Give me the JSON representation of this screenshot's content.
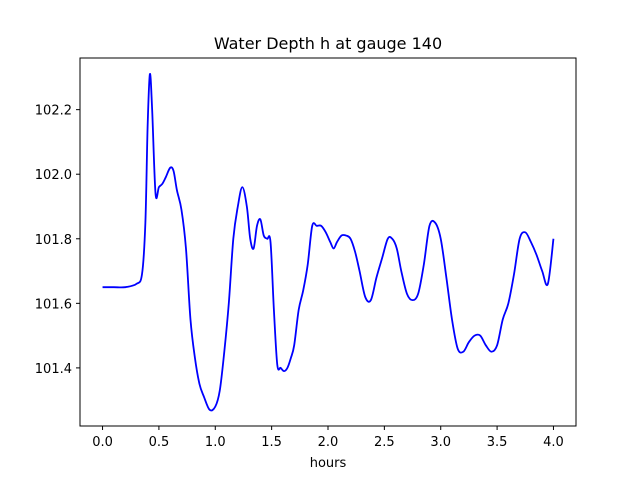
{
  "chart_data": {
    "type": "line",
    "title": "Water Depth h at gauge 140",
    "xlabel": "hours",
    "ylabel": "",
    "xlim": [
      -0.2,
      4.2
    ],
    "ylim": [
      101.22,
      102.36
    ],
    "xticks": [
      0.0,
      0.5,
      1.0,
      1.5,
      2.0,
      2.5,
      3.0,
      3.5,
      4.0
    ],
    "xtick_labels": [
      "0.0",
      "0.5",
      "1.0",
      "1.5",
      "2.0",
      "2.5",
      "3.0",
      "3.5",
      "4.0"
    ],
    "yticks": [
      101.4,
      101.6,
      101.8,
      102.0,
      102.2
    ],
    "ytick_labels": [
      "101.4",
      "101.6",
      "101.8",
      "102.0",
      "102.2"
    ],
    "grid": false,
    "series": [
      {
        "color": "#0000ff",
        "x": [
          0.0,
          0.1,
          0.2,
          0.3,
          0.35,
          0.38,
          0.4,
          0.42,
          0.44,
          0.47,
          0.5,
          0.53,
          0.56,
          0.6,
          0.63,
          0.66,
          0.7,
          0.74,
          0.78,
          0.82,
          0.86,
          0.9,
          0.95,
          1.0,
          1.04,
          1.08,
          1.12,
          1.16,
          1.2,
          1.24,
          1.28,
          1.31,
          1.34,
          1.37,
          1.4,
          1.43,
          1.46,
          1.49,
          1.52,
          1.55,
          1.58,
          1.61,
          1.64,
          1.67,
          1.7,
          1.74,
          1.78,
          1.82,
          1.86,
          1.9,
          1.94,
          1.98,
          2.02,
          2.05,
          2.08,
          2.12,
          2.16,
          2.2,
          2.24,
          2.28,
          2.33,
          2.38,
          2.43,
          2.48,
          2.53,
          2.57,
          2.61,
          2.65,
          2.7,
          2.75,
          2.8,
          2.85,
          2.9,
          2.95,
          3.0,
          3.05,
          3.1,
          3.15,
          3.2,
          3.25,
          3.3,
          3.35,
          3.4,
          3.45,
          3.5,
          3.55,
          3.6,
          3.65,
          3.7,
          3.75,
          3.8,
          3.85,
          3.9,
          3.95,
          4.0
        ],
        "y": [
          101.65,
          101.65,
          101.65,
          101.66,
          101.69,
          101.85,
          102.15,
          102.31,
          102.2,
          101.94,
          101.96,
          101.97,
          101.99,
          102.02,
          102.01,
          101.95,
          101.89,
          101.77,
          101.55,
          101.43,
          101.35,
          101.31,
          101.27,
          101.28,
          101.33,
          101.45,
          101.6,
          101.8,
          101.9,
          101.96,
          101.9,
          101.8,
          101.77,
          101.84,
          101.86,
          101.81,
          101.8,
          101.79,
          101.58,
          101.41,
          101.4,
          101.39,
          101.4,
          101.43,
          101.47,
          101.58,
          101.64,
          101.72,
          101.84,
          101.84,
          101.84,
          101.82,
          101.79,
          101.77,
          101.79,
          101.81,
          101.81,
          101.8,
          101.76,
          101.7,
          101.62,
          101.61,
          101.68,
          101.74,
          101.8,
          101.8,
          101.77,
          101.7,
          101.63,
          101.61,
          101.63,
          101.72,
          101.84,
          101.85,
          101.8,
          101.68,
          101.55,
          101.46,
          101.45,
          101.48,
          101.5,
          101.5,
          101.47,
          101.45,
          101.47,
          101.55,
          101.6,
          101.69,
          101.8,
          101.82,
          101.79,
          101.75,
          101.7,
          101.66,
          101.8
        ]
      }
    ]
  }
}
